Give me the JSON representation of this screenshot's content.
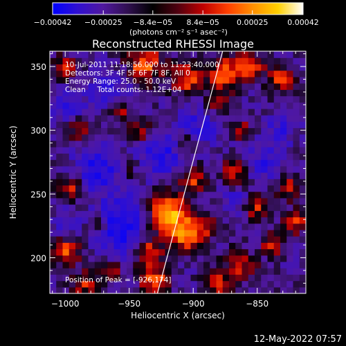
{
  "chart_data": {
    "type": "heatmap",
    "title": "Reconstructed RHESSI Image",
    "xlabel": "Heliocentric X (arcsec)",
    "ylabel": "Heliocentric Y (arcsec)",
    "xlim": [
      -1012,
      -812
    ],
    "ylim": [
      172,
      362
    ],
    "x_ticks": [
      -1000,
      -950,
      -900,
      -850
    ],
    "x_tick_labels": [
      "−1000",
      "−950",
      "−900",
      "−850"
    ],
    "y_ticks": [
      200,
      250,
      300,
      350
    ],
    "y_tick_labels": [
      "200",
      "250",
      "300",
      "350"
    ],
    "colorbar": {
      "min": -0.00042,
      "max": 0.00042,
      "ticks": [
        -0.00042,
        -0.00025,
        -8.4e-05,
        8.4e-05,
        0.00025,
        0.00042
      ],
      "tick_labels": [
        "−0.00042",
        "−0.00025",
        "−8.4e−05",
        "8.4e−05",
        "0.00025",
        "0.00042"
      ],
      "unit_label": "(photons cm⁻² s⁻¹ asec⁻²)",
      "colors": [
        "#0000ff",
        "#3010d0",
        "#5018a0",
        "#301050",
        "#000000",
        "#500010",
        "#c00000",
        "#ff4000",
        "#ff9000",
        "#ffd000",
        "#ffffff"
      ]
    },
    "annotations": [
      "10-Jul-2011 11:18:56.000 to 11:23:40.000",
      "Detectors: 3F 4F 5F 6F 7F 8F, All 0",
      "Energy Range: 25.0 - 50.0 keV",
      "Clean     Total counts: 1.12E+04"
    ],
    "peak_label": "Position of Peak = [-926,174]",
    "peak": [
      -926,
      174
    ],
    "limb_line": [
      [
        -928,
        172
      ],
      [
        -877,
        362
      ]
    ],
    "grid": false
  },
  "footer": {
    "timestamp": "12-May-2022 07:57"
  }
}
